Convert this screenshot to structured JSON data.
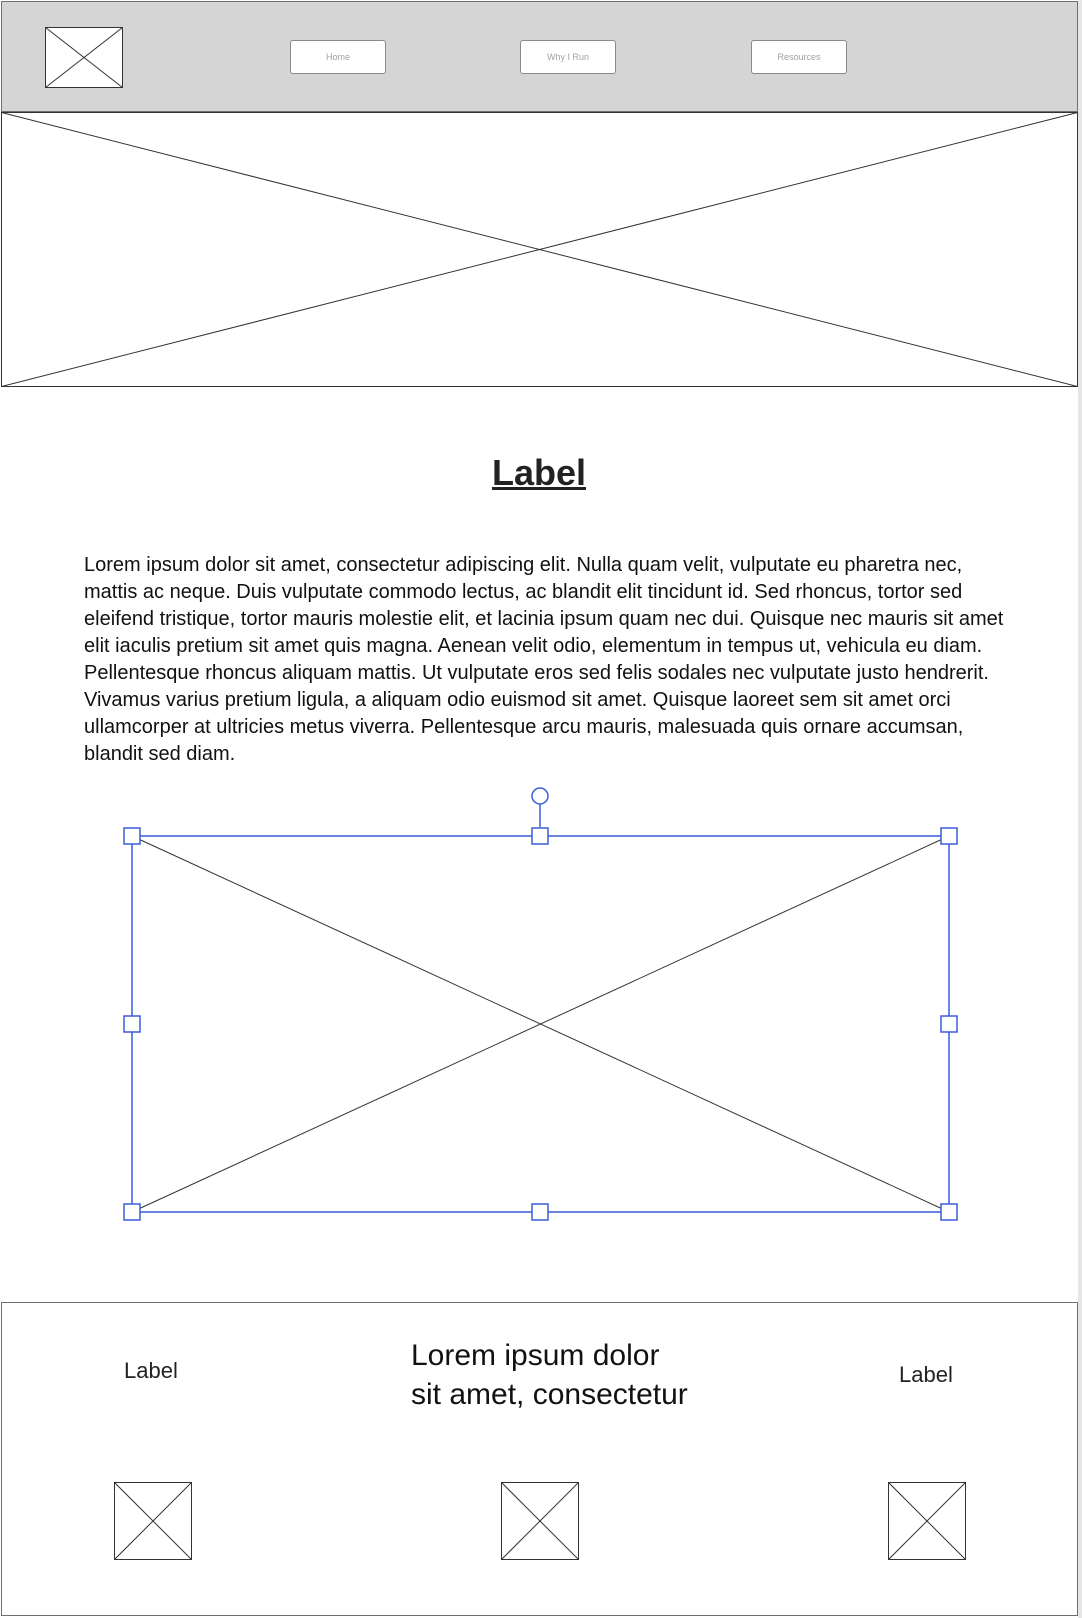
{
  "header": {
    "logo_icon": "image-placeholder-icon",
    "nav": [
      {
        "label": "Home"
      },
      {
        "label": "Why I Run"
      },
      {
        "label": "Resources"
      }
    ]
  },
  "hero": {
    "icon": "image-placeholder-icon"
  },
  "main": {
    "title": "Label",
    "body": "Lorem ipsum dolor sit amet, consectetur adipiscing elit. Nulla quam velit, vulputate eu pharetra nec, mattis ac neque. Duis vulputate commodo lectus, ac blandit elit tincidunt id. Sed rhoncus, tortor sed eleifend tristique, tortor mauris molestie elit, et lacinia ipsum quam nec dui. Quisque nec mauris sit amet elit iaculis pretium sit amet quis magna. Aenean velit odio, elementum in tempus ut, vehicula eu diam. Pellentesque rhoncus aliquam mattis. Ut vulputate eros sed felis sodales nec vulputate justo hendrerit. Vivamus varius pretium ligula, a aliquam odio euismod sit amet. Quisque laoreet sem sit amet orci ullamcorper at ultricies metus viverra. Pellentesque arcu mauris, malesuada quis ornare accumsan, blandit sed diam.",
    "image_icon": "image-placeholder-icon"
  },
  "footer": {
    "left_label": "Label",
    "center_text": "Lorem ipsum dolor sit amet, consectetur",
    "right_label": "Label",
    "icons": [
      "image-placeholder-icon",
      "image-placeholder-icon",
      "image-placeholder-icon"
    ]
  },
  "colors": {
    "header_bg": "#d5d5d5",
    "selection": "#3b5bd9",
    "placeholder_stroke": "#333333"
  }
}
